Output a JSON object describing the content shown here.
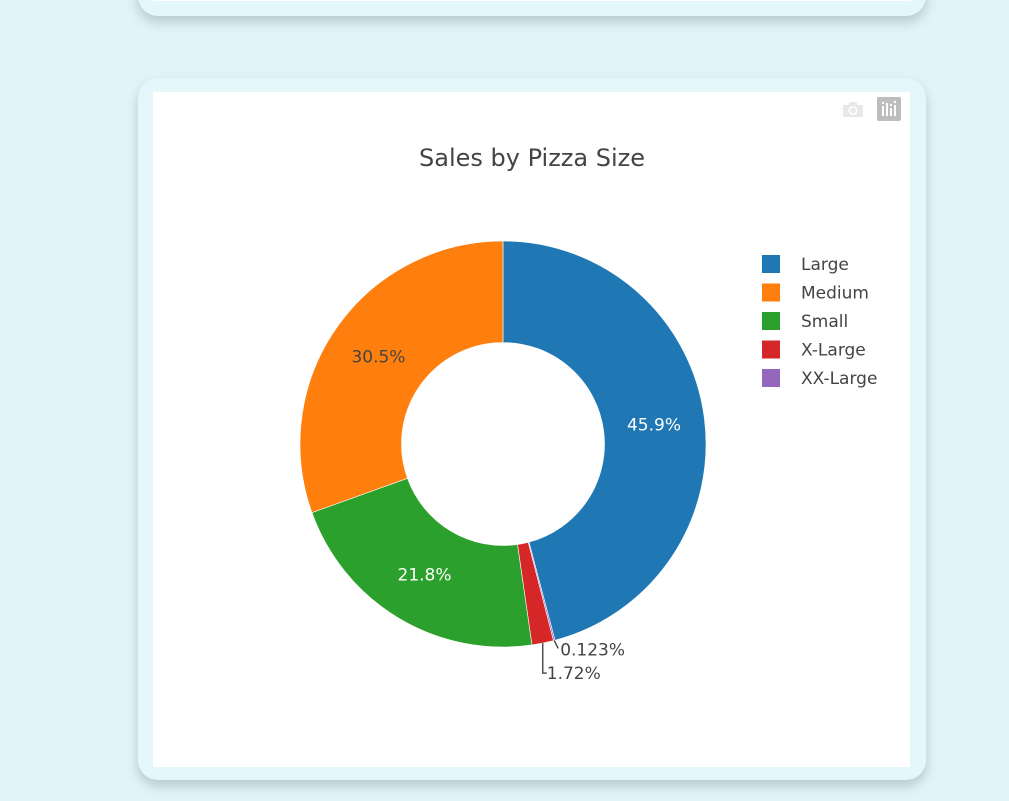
{
  "chart_data": {
    "type": "pie",
    "hole": 0.5,
    "title": "Sales by Pizza Size",
    "labels": [
      "Large",
      "Medium",
      "Small",
      "X-Large",
      "XX-Large"
    ],
    "values": [
      45.9,
      30.5,
      21.8,
      1.72,
      0.123
    ],
    "text_labels": [
      "45.9%",
      "30.5%",
      "21.8%",
      "1.72%",
      "0.123%"
    ],
    "colors": [
      "#1f77b4",
      "#ff7f0e",
      "#2ca02c",
      "#d62728",
      "#9467bd"
    ],
    "slice_order": [
      "Large",
      "XX-Large",
      "X-Large",
      "Small",
      "Medium"
    ],
    "direction": "clockwise",
    "legend_position": "right"
  },
  "modebar": {
    "icons": [
      "camera-icon",
      "plotly-logo-icon"
    ]
  }
}
